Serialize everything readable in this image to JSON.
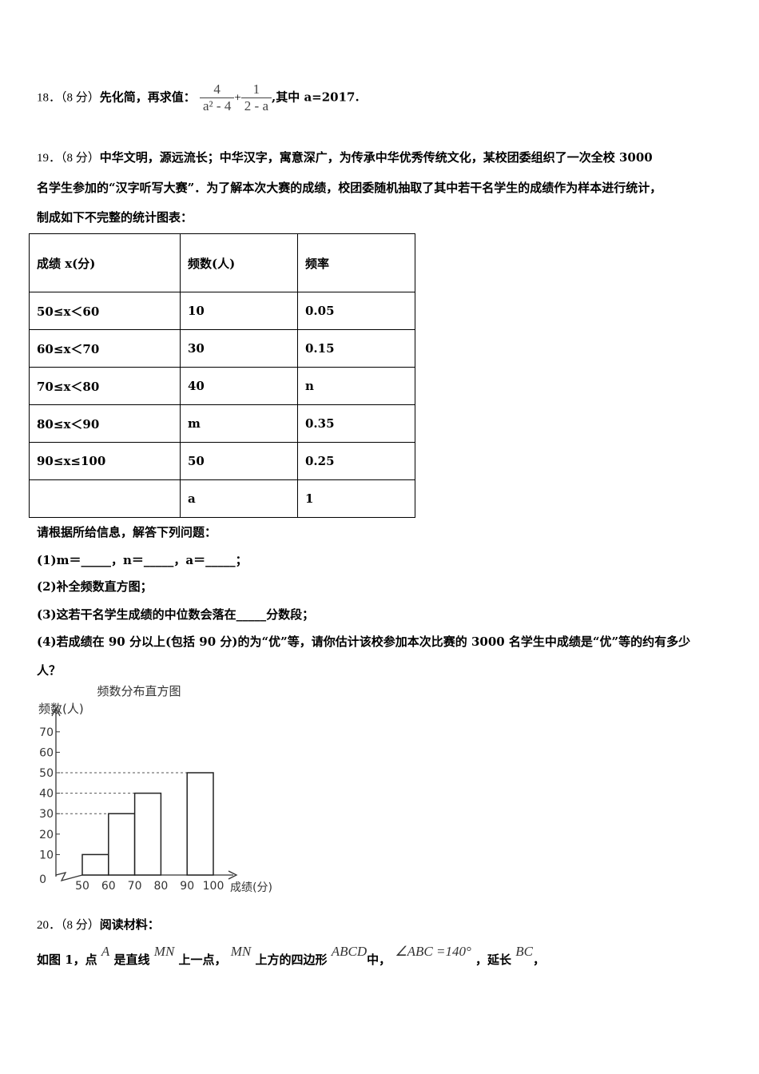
{
  "q18": {
    "number": "18．（8 分）",
    "text": "先化简，再求值：",
    "frac1_num": "4",
    "frac1_den": "a² - 4",
    "plus": "+",
    "frac2_num": "1",
    "frac2_den": "2 - a",
    "tail": ",其中 a=2017."
  },
  "q19": {
    "number": "19．（8 分）",
    "lines": [
      "中华文明，源远流长；中华汉字，寓意深广，为传承中华优秀传统文化，某校团委组织了一次全校 3000",
      "名学生参加的“汉字听写大赛”．为了解本次大赛的成绩，校团委随机抽取了其中若干名学生的成绩作为样本进行统计，",
      "制成如下不完整的统计图表："
    ],
    "table": {
      "headers": [
        "成绩 x(分)",
        "频数(人)",
        "频率"
      ],
      "rows": [
        [
          "50≤x＜60",
          "10",
          "0.05"
        ],
        [
          "60≤x＜70",
          "30",
          "0.15"
        ],
        [
          "70≤x＜80",
          "40",
          "n"
        ],
        [
          "80≤x＜90",
          "m",
          "0.35"
        ],
        [
          "90≤x≤100",
          "50",
          "0.25"
        ],
        [
          "",
          "a",
          "1"
        ]
      ]
    },
    "questions": [
      "请根据所给信息，解答下列问题：",
      "(1)m＝_____，n＝_____，a＝_____；",
      "(2)补全频数直方图；",
      "(3)这若干名学生成绩的中位数会落在_____分数段；",
      "(4)若成绩在 90 分以上(包括 90 分)的为“优”等，请你估计该校参加本次比赛的 3000 名学生中成绩是“优”等的约有多少",
      "人？"
    ]
  },
  "chart_data": {
    "type": "bar",
    "title": "频数分布直方图",
    "ylabel": "频数(人)",
    "xlabel": "成绩(分)",
    "x_ticks": [
      "50",
      "60",
      "70",
      "80",
      "90",
      "100"
    ],
    "y_ticks": [
      "0",
      "10",
      "20",
      "30",
      "40",
      "50",
      "60",
      "70"
    ],
    "ylim": [
      0,
      70
    ],
    "bins": [
      {
        "from": 50,
        "to": 60,
        "value": 10
      },
      {
        "from": 60,
        "to": 70,
        "value": 30
      },
      {
        "from": 70,
        "to": 80,
        "value": 40
      },
      {
        "from": 90,
        "to": 100,
        "value": 50
      }
    ],
    "dashed_guides": [
      30,
      40,
      50
    ]
  },
  "q20": {
    "number": "20．（8 分）",
    "title": "阅读材料：",
    "t1": "如图 1，点",
    "A": "A",
    "t2": "是直线",
    "MN1": "MN",
    "t3": "上一点，",
    "MN2": "MN",
    "t4": "上方的四边形",
    "ABCD": "ABCD",
    "t5": "中，",
    "angle": "∠ABC =140°",
    "t6": "，延长",
    "BC": "BC",
    "t7": "，"
  }
}
